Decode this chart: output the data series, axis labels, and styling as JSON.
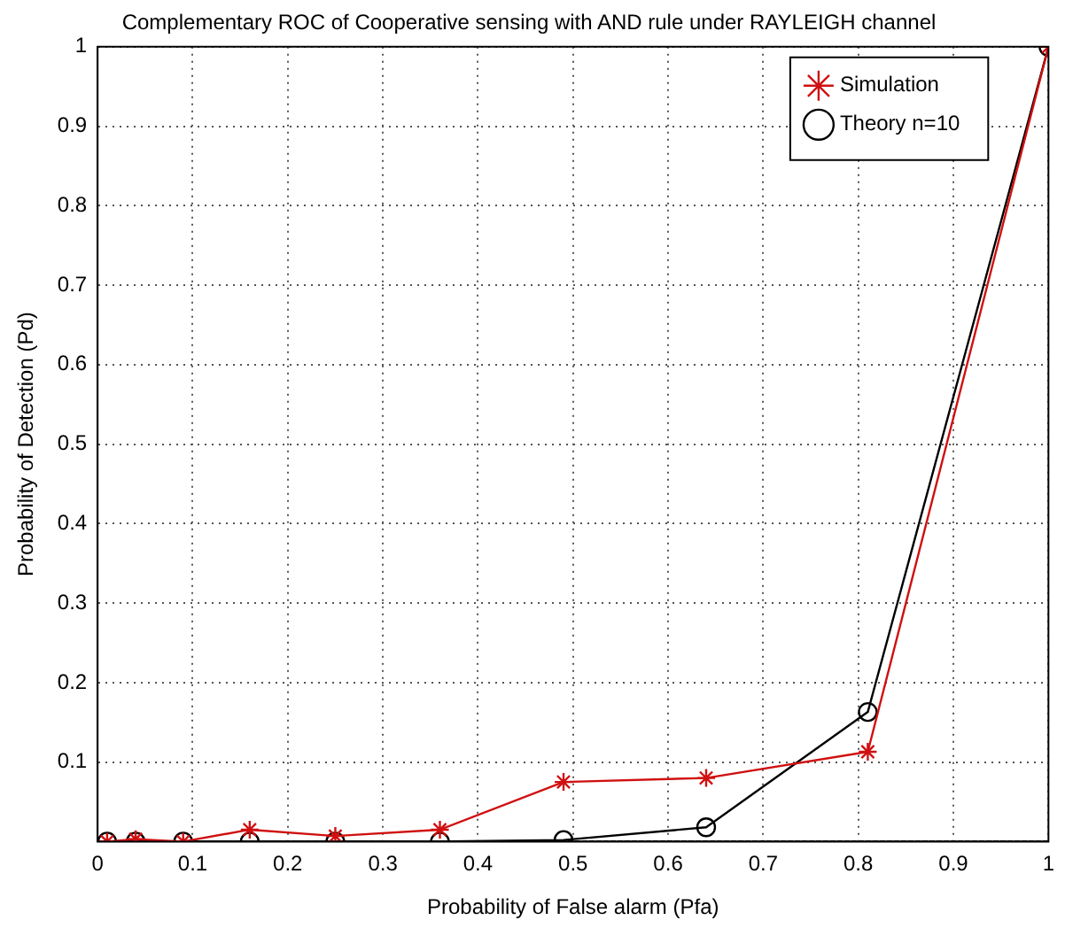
{
  "chart_data": {
    "type": "line",
    "title": "Complementary ROC of Cooperative sensing with AND rule under RAYLEIGH channel",
    "xlabel": "Probability of False alarm (Pfa)",
    "ylabel": "Probability of Detection (Pd)",
    "x": [
      0.01,
      0.04,
      0.09,
      0.16,
      0.25,
      0.36,
      0.49,
      0.64,
      0.81,
      1
    ],
    "series": [
      {
        "name": "Simulation",
        "color": "#d01010",
        "marker": "cross",
        "values": [
          0,
          0.003,
          0,
          0.015,
          0.007,
          0.015,
          0.075,
          0.08,
          0.113,
          1
        ]
      },
      {
        "name": "Theory n=10",
        "color": "#000000",
        "marker": "circle",
        "values": [
          0,
          0,
          0,
          0,
          0,
          0,
          0.002,
          0.018,
          0.163,
          1
        ]
      }
    ],
    "xlim": [
      0,
      1
    ],
    "xticks": [
      0,
      0.1,
      0.2,
      0.3,
      0.4,
      0.5,
      0.6,
      0.7,
      0.8,
      0.9,
      1
    ],
    "ylim": [
      0,
      1
    ],
    "yticks": [
      {
        "value": 0,
        "label": null
      },
      0.1,
      0.2,
      0.3,
      0.4,
      0.5,
      0.6,
      0.7,
      0.8,
      0.9,
      1
    ],
    "grid": true,
    "legend": "top right",
    "line_style": "solid"
  }
}
